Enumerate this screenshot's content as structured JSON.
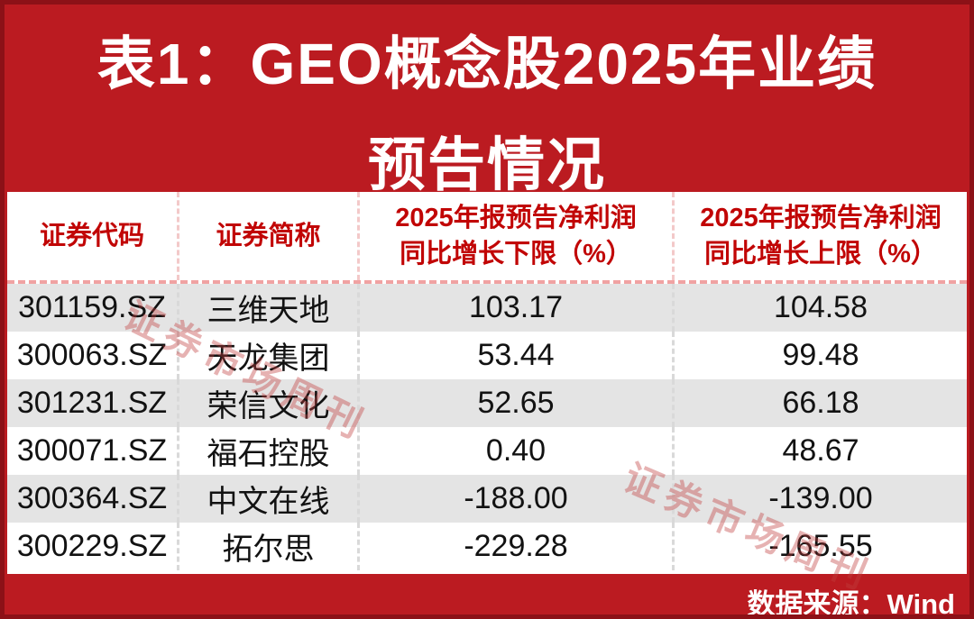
{
  "title": {
    "line1": "表1：GEO概念股2025年业绩",
    "line2": "预告情况"
  },
  "table": {
    "header": {
      "code": "证券代码",
      "name": "证券简称",
      "low_line1": "2025年报预告净利润",
      "low_line2": "同比增长下限（%）",
      "high_line1": "2025年报预告净利润",
      "high_line2": "同比增长上限（%）"
    },
    "rows": [
      {
        "code": "301159.SZ",
        "name": "三维天地",
        "low": "103.17",
        "high": "104.58"
      },
      {
        "code": "300063.SZ",
        "name": "天龙集团",
        "low": "53.44",
        "high": "99.48"
      },
      {
        "code": "301231.SZ",
        "name": "荣信文化",
        "low": "52.65",
        "high": "66.18"
      },
      {
        "code": "300071.SZ",
        "name": "福石控股",
        "low": "0.40",
        "high": "48.67"
      },
      {
        "code": "300364.SZ",
        "name": "中文在线",
        "low": "-188.00",
        "high": "-139.00"
      },
      {
        "code": "300229.SZ",
        "name": "拓尔思",
        "low": "-229.28",
        "high": "-165.55"
      }
    ]
  },
  "watermark": {
    "text": "证券市场周刊"
  },
  "source": {
    "label": "数据来源：Wind"
  },
  "colors": {
    "background_red": "#bb1b21",
    "border_dark_red": "#8c1117",
    "header_text_red": "#c10505",
    "row_alt_gray": "#e4e4e4",
    "watermark_pink": "#d98f8f",
    "title_white": "#ffffff"
  },
  "chart_data": {
    "type": "table",
    "title": "表1：GEO概念股2025年业绩预告情况",
    "columns": [
      "证券代码",
      "证券简称",
      "2025年报预告净利润同比增长下限（%）",
      "2025年报预告净利润同比增长上限（%）"
    ],
    "rows": [
      [
        "301159.SZ",
        "三维天地",
        103.17,
        104.58
      ],
      [
        "300063.SZ",
        "天龙集团",
        53.44,
        99.48
      ],
      [
        "301231.SZ",
        "荣信文化",
        52.65,
        66.18
      ],
      [
        "300071.SZ",
        "福石控股",
        0.4,
        48.67
      ],
      [
        "300364.SZ",
        "中文在线",
        -188.0,
        -139.0
      ],
      [
        "300229.SZ",
        "拓尔思",
        -229.28,
        -165.55
      ]
    ],
    "source": "数据来源：Wind"
  }
}
